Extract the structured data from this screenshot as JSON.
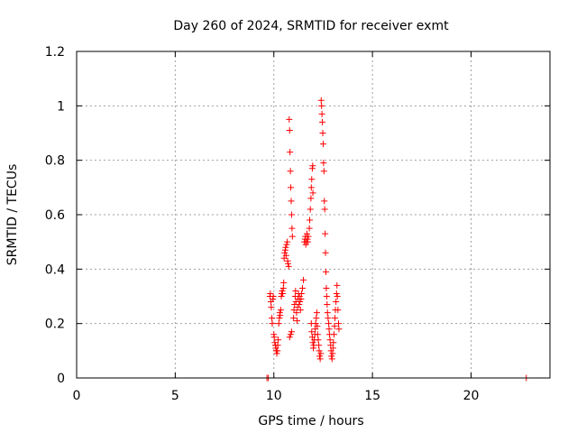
{
  "chart_data": {
    "type": "scatter",
    "title": "Day 260 of 2024, SRMTID for receiver exmt",
    "xlabel": "GPS time / hours",
    "ylabel": "SRMTID / TECUs",
    "xlim": [
      0,
      24
    ],
    "ylim": [
      0,
      1.2
    ],
    "x_ticks": [
      0,
      5,
      10,
      15,
      20
    ],
    "y_ticks": [
      0,
      0.2,
      0.4,
      0.6,
      0.8,
      1,
      1.2
    ],
    "x_tick_labels": [
      "0",
      "5",
      "10",
      "15",
      "20"
    ],
    "y_tick_labels": [
      "0",
      "0.2",
      "0.4",
      "0.6",
      "0.8",
      "1",
      "1.2"
    ],
    "grid": true,
    "marker": "plus",
    "color": "#ff0000",
    "points": [
      [
        9.65,
        0.0
      ],
      [
        9.72,
        0.0
      ],
      [
        9.8,
        0.3
      ],
      [
        9.82,
        0.31
      ],
      [
        9.85,
        0.28
      ],
      [
        9.87,
        0.26
      ],
      [
        9.9,
        0.22
      ],
      [
        9.92,
        0.2
      ],
      [
        9.95,
        0.29
      ],
      [
        9.97,
        0.3
      ],
      [
        10.0,
        0.16
      ],
      [
        10.02,
        0.15
      ],
      [
        10.05,
        0.13
      ],
      [
        10.08,
        0.12
      ],
      [
        10.1,
        0.11
      ],
      [
        10.12,
        0.1
      ],
      [
        10.15,
        0.09
      ],
      [
        10.18,
        0.1
      ],
      [
        10.2,
        0.12
      ],
      [
        10.22,
        0.14
      ],
      [
        10.25,
        0.2
      ],
      [
        10.28,
        0.22
      ],
      [
        10.3,
        0.24
      ],
      [
        10.32,
        0.23
      ],
      [
        10.35,
        0.25
      ],
      [
        10.38,
        0.3
      ],
      [
        10.4,
        0.31
      ],
      [
        10.42,
        0.32
      ],
      [
        10.45,
        0.31
      ],
      [
        10.48,
        0.33
      ],
      [
        10.5,
        0.35
      ],
      [
        10.52,
        0.44
      ],
      [
        10.55,
        0.46
      ],
      [
        10.58,
        0.47
      ],
      [
        10.6,
        0.48
      ],
      [
        10.62,
        0.45
      ],
      [
        10.65,
        0.49
      ],
      [
        10.68,
        0.5
      ],
      [
        10.7,
        0.43
      ],
      [
        10.72,
        0.42
      ],
      [
        10.75,
        0.41
      ],
      [
        10.78,
        0.95
      ],
      [
        10.8,
        0.91
      ],
      [
        10.82,
        0.83
      ],
      [
        10.84,
        0.76
      ],
      [
        10.86,
        0.7
      ],
      [
        10.88,
        0.65
      ],
      [
        10.9,
        0.6
      ],
      [
        10.92,
        0.55
      ],
      [
        10.94,
        0.52
      ],
      [
        10.8,
        0.15
      ],
      [
        10.85,
        0.16
      ],
      [
        10.9,
        0.17
      ],
      [
        11.0,
        0.22
      ],
      [
        11.02,
        0.25
      ],
      [
        11.05,
        0.27
      ],
      [
        11.08,
        0.3
      ],
      [
        11.1,
        0.32
      ],
      [
        11.12,
        0.28
      ],
      [
        11.15,
        0.24
      ],
      [
        11.18,
        0.21
      ],
      [
        11.2,
        0.26
      ],
      [
        11.22,
        0.29
      ],
      [
        11.25,
        0.31
      ],
      [
        11.28,
        0.27
      ],
      [
        11.3,
        0.3
      ],
      [
        11.32,
        0.28
      ],
      [
        11.35,
        0.25
      ],
      [
        11.38,
        0.29
      ],
      [
        11.4,
        0.31
      ],
      [
        11.45,
        0.33
      ],
      [
        11.5,
        0.36
      ],
      [
        11.55,
        0.5
      ],
      [
        11.58,
        0.51
      ],
      [
        11.6,
        0.52
      ],
      [
        11.62,
        0.49
      ],
      [
        11.65,
        0.5
      ],
      [
        11.68,
        0.53
      ],
      [
        11.7,
        0.51
      ],
      [
        11.72,
        0.5
      ],
      [
        11.75,
        0.52
      ],
      [
        11.8,
        0.55
      ],
      [
        11.82,
        0.58
      ],
      [
        11.85,
        0.62
      ],
      [
        11.88,
        0.66
      ],
      [
        11.9,
        0.7
      ],
      [
        11.92,
        0.73
      ],
      [
        11.95,
        0.77
      ],
      [
        11.97,
        0.78
      ],
      [
        11.98,
        0.68
      ],
      [
        11.9,
        0.2
      ],
      [
        11.92,
        0.17
      ],
      [
        11.95,
        0.15
      ],
      [
        11.98,
        0.13
      ],
      [
        12.0,
        0.11
      ],
      [
        12.02,
        0.12
      ],
      [
        12.05,
        0.14
      ],
      [
        12.08,
        0.16
      ],
      [
        12.1,
        0.18
      ],
      [
        12.12,
        0.2
      ],
      [
        12.15,
        0.22
      ],
      [
        12.18,
        0.24
      ],
      [
        12.2,
        0.19
      ],
      [
        12.22,
        0.16
      ],
      [
        12.25,
        0.14
      ],
      [
        12.28,
        0.12
      ],
      [
        12.3,
        0.1
      ],
      [
        12.32,
        0.08
      ],
      [
        12.35,
        0.07
      ],
      [
        12.38,
        0.09
      ],
      [
        12.4,
        1.02
      ],
      [
        12.42,
        1.0
      ],
      [
        12.44,
        0.97
      ],
      [
        12.46,
        0.94
      ],
      [
        12.48,
        0.9
      ],
      [
        12.5,
        0.86
      ],
      [
        12.52,
        0.79
      ],
      [
        12.54,
        0.76
      ],
      [
        12.56,
        0.65
      ],
      [
        12.58,
        0.62
      ],
      [
        12.6,
        0.53
      ],
      [
        12.62,
        0.46
      ],
      [
        12.64,
        0.39
      ],
      [
        12.66,
        0.33
      ],
      [
        12.68,
        0.3
      ],
      [
        12.7,
        0.27
      ],
      [
        12.72,
        0.24
      ],
      [
        12.75,
        0.22
      ],
      [
        12.78,
        0.2
      ],
      [
        12.8,
        0.18
      ],
      [
        12.82,
        0.16
      ],
      [
        12.85,
        0.14
      ],
      [
        12.88,
        0.12
      ],
      [
        12.9,
        0.1
      ],
      [
        12.92,
        0.08
      ],
      [
        12.95,
        0.07
      ],
      [
        12.98,
        0.09
      ],
      [
        13.0,
        0.11
      ],
      [
        13.02,
        0.13
      ],
      [
        13.05,
        0.16
      ],
      [
        13.08,
        0.19
      ],
      [
        13.1,
        0.22
      ],
      [
        13.12,
        0.25
      ],
      [
        13.15,
        0.28
      ],
      [
        13.18,
        0.31
      ],
      [
        13.2,
        0.34
      ],
      [
        13.22,
        0.3
      ],
      [
        13.25,
        0.25
      ],
      [
        13.28,
        0.2
      ],
      [
        13.3,
        0.18
      ],
      [
        22.8,
        0.0
      ]
    ]
  }
}
